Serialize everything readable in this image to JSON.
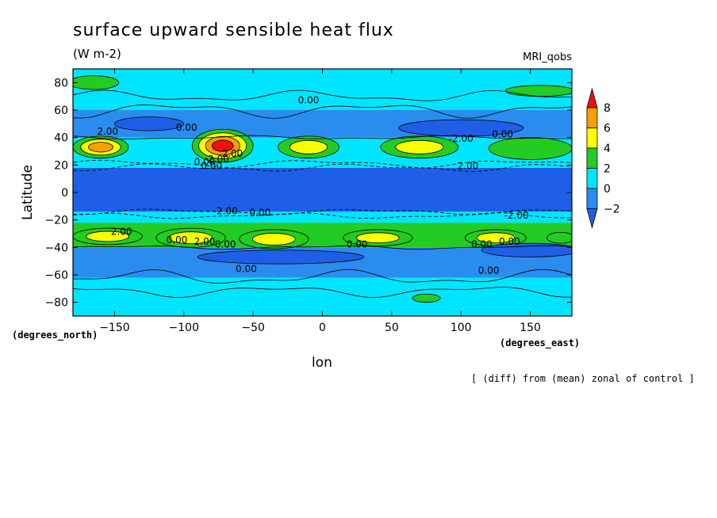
{
  "chart_data": {
    "type": "heatmap",
    "subtype": "filled-contour-map",
    "title": "surface upward sensible heat flux",
    "units": "(W m-2)",
    "model": "MRI_qobs",
    "xlabel": "lon",
    "ylabel": "Latitude",
    "x_units_label": "(degrees_east)",
    "y_units_label": "(degrees_north)",
    "note": "[ (diff) from (mean) zonal of control ]",
    "xlim": [
      -180,
      180
    ],
    "ylim": [
      -90,
      90
    ],
    "x_ticks": [
      -150,
      -100,
      -50,
      0,
      50,
      100,
      150
    ],
    "y_ticks": [
      80,
      60,
      40,
      20,
      0,
      -20,
      -40,
      -60,
      -80
    ],
    "levels": [
      -2,
      0,
      2,
      4,
      6,
      8
    ],
    "colorbar": {
      "labels": [
        "8",
        "6",
        "4",
        "2",
        "0",
        "-2"
      ],
      "colors": [
        "#ee1010",
        "#f5a000",
        "#ffff00",
        "#22cc22",
        "#00e5ff",
        "#2b8cf0",
        "#1f5fe8"
      ]
    },
    "contour_labels": [
      "0.00",
      "-2.00",
      "2.00",
      "0.00",
      "2.00",
      "0.00",
      "2.00",
      "0.00",
      "-2.00",
      "2.00",
      "0.00",
      "-2.00",
      "2.00",
      "0.00",
      "0.00",
      "0.00",
      "0.00",
      "0.00",
      "2.00",
      "0.00",
      "0.00",
      "0.00"
    ],
    "bands": [
      {
        "lat": [
          -90,
          -62
        ],
        "value": 0.3
      },
      {
        "lat": [
          -62,
          -40
        ],
        "value": -0.8
      },
      {
        "lat": [
          -40,
          -22
        ],
        "value": 2.2
      },
      {
        "lat": [
          -22,
          -14
        ],
        "value": 0.4
      },
      {
        "lat": [
          -14,
          18
        ],
        "value": -3.0
      },
      {
        "lat": [
          18,
          40
        ],
        "value": 1.8
      },
      {
        "lat": [
          40,
          60
        ],
        "value": -0.6
      },
      {
        "lat": [
          60,
          90
        ],
        "value": 0.2
      }
    ],
    "blobs": [
      {
        "lon": -160,
        "lat": 33,
        "rx": 20,
        "ry": 8,
        "levels": [
          2,
          4,
          6
        ]
      },
      {
        "lon": -72,
        "lat": 34,
        "rx": 22,
        "ry": 12,
        "levels": [
          2,
          4,
          6,
          8
        ]
      },
      {
        "lon": -10,
        "lat": 33,
        "rx": 22,
        "ry": 8,
        "levels": [
          2,
          4
        ]
      },
      {
        "lon": 70,
        "lat": 33,
        "rx": 28,
        "ry": 8,
        "levels": [
          2,
          4
        ]
      },
      {
        "lon": 150,
        "lat": 32,
        "rx": 30,
        "ry": 8,
        "levels": [
          2
        ]
      },
      {
        "lon": -165,
        "lat": 80,
        "rx": 18,
        "ry": 5,
        "levels": [
          2
        ]
      },
      {
        "lon": 157,
        "lat": 74,
        "rx": 25,
        "ry": 4,
        "levels": [
          2
        ]
      },
      {
        "lon": -155,
        "lat": -32,
        "rx": 25,
        "ry": 6,
        "levels": [
          2,
          4
        ]
      },
      {
        "lon": -95,
        "lat": -33,
        "rx": 25,
        "ry": 7,
        "levels": [
          2,
          4
        ]
      },
      {
        "lon": -35,
        "lat": -34,
        "rx": 25,
        "ry": 7,
        "levels": [
          2,
          4
        ]
      },
      {
        "lon": 40,
        "lat": -33,
        "rx": 25,
        "ry": 6,
        "levels": [
          2,
          4
        ]
      },
      {
        "lon": 125,
        "lat": -33,
        "rx": 22,
        "ry": 6,
        "levels": [
          2,
          4
        ]
      },
      {
        "lon": 172,
        "lat": -33,
        "rx": 10,
        "ry": 4,
        "levels": [
          2
        ]
      },
      {
        "lon": 75,
        "lat": -77,
        "rx": 10,
        "ry": 3,
        "levels": [
          2
        ]
      },
      {
        "lon": -125,
        "lat": 50,
        "rx": 25,
        "ry": 5,
        "levels": [
          -2
        ]
      },
      {
        "lon": 100,
        "lat": 47,
        "rx": 45,
        "ry": 6,
        "levels": [
          -2
        ]
      },
      {
        "lon": -30,
        "lat": -47,
        "rx": 60,
        "ry": 5,
        "levels": [
          -2
        ]
      },
      {
        "lon": 150,
        "lat": -42,
        "rx": 35,
        "ry": 5,
        "levels": [
          -2
        ]
      }
    ]
  }
}
